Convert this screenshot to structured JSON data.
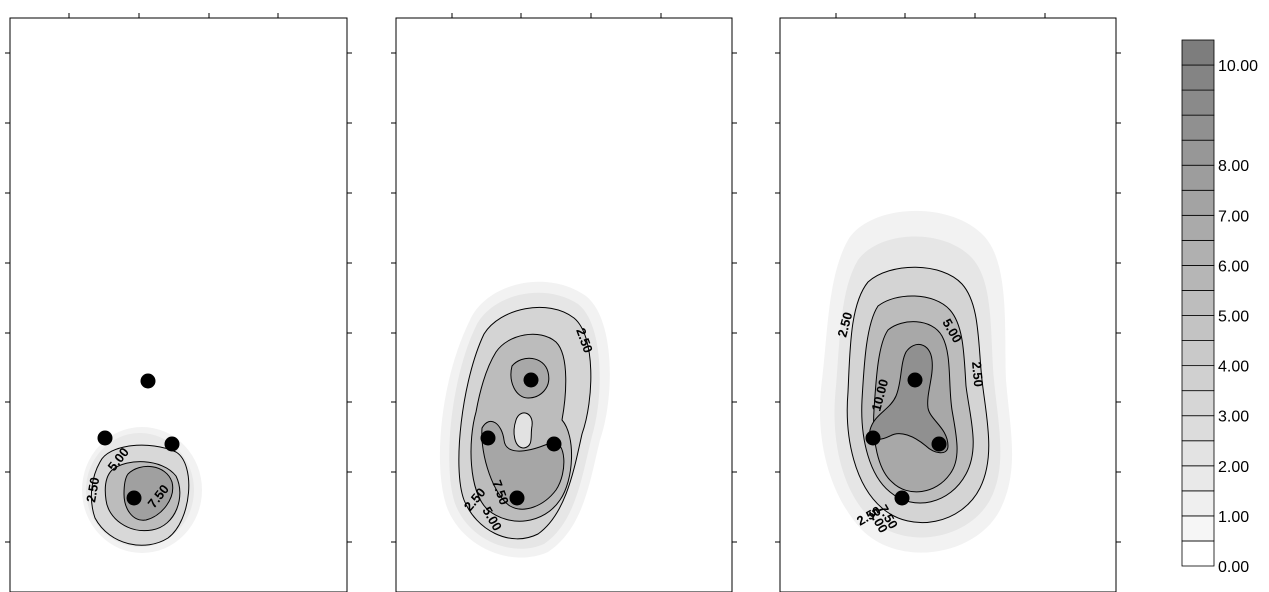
{
  "chart_data": [
    {
      "type": "contour",
      "title": "",
      "xlabel": "",
      "ylabel": "",
      "contour_lines": [
        2.5,
        5.0,
        7.5
      ],
      "contour_labels": [
        "2.50",
        "5.00",
        "7.50"
      ],
      "points_count": 4,
      "peak_value": 8.5
    },
    {
      "type": "contour",
      "title": "",
      "xlabel": "",
      "ylabel": "",
      "contour_lines": [
        2.5,
        5.0,
        7.5
      ],
      "contour_labels": [
        "2.50",
        "5.00",
        "7.50"
      ],
      "points_count": 4,
      "peak_value": 8.5
    },
    {
      "type": "contour",
      "title": "",
      "xlabel": "",
      "ylabel": "",
      "contour_lines": [
        2.5,
        5.0,
        7.5,
        10.0
      ],
      "contour_labels": [
        "2.50",
        "5.00",
        "7.50",
        "10.00"
      ],
      "points_count": 4,
      "peak_value": 10.5
    }
  ],
  "colorbar": {
    "min": 0.0,
    "max": 10.5,
    "step": 0.5,
    "tick_labels": [
      "10.00",
      "8.00",
      "7.00",
      "6.00",
      "5.00",
      "4.00",
      "3.00",
      "2.00",
      "1.00",
      "0.00"
    ],
    "tick_values": [
      10,
      8,
      7,
      6,
      5,
      4,
      3,
      2,
      1,
      0
    ],
    "color_low": "#ffffff",
    "color_high": "#7a7a7a"
  },
  "colors": {
    "frame": "#000000",
    "marker": "#000000"
  }
}
